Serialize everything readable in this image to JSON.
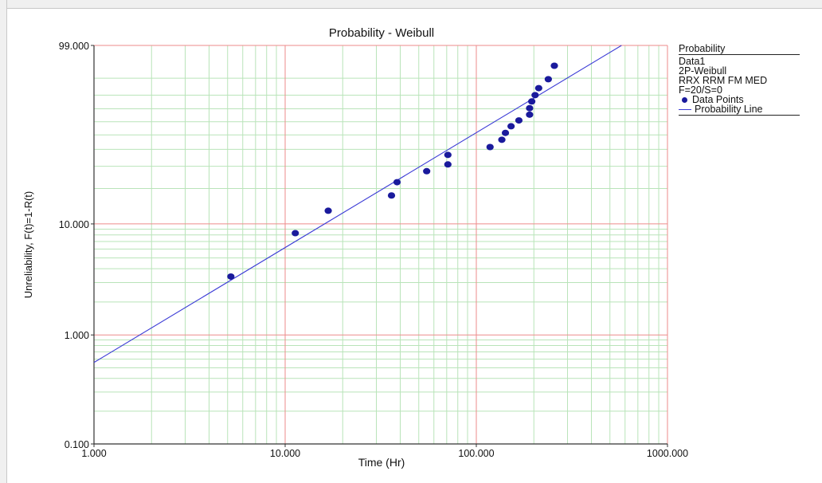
{
  "chart_data": {
    "type": "scatter",
    "title": "Probability - Weibull",
    "xlabel": "Time (Hr)",
    "ylabel": "Unreliability, F(t)=1-R(t)",
    "x_scale": "log",
    "y_scale": "weibull",
    "xlim": [
      1,
      1000
    ],
    "ylim": [
      0.1,
      99
    ],
    "x_ticks": [
      1,
      10,
      100,
      1000
    ],
    "x_tick_labels": [
      "1.000",
      "10.000",
      "100.000",
      "1000.000"
    ],
    "y_ticks": [
      0.1,
      1,
      10,
      99
    ],
    "y_tick_labels": [
      "0.100",
      "1.000",
      "10.000",
      "99.000"
    ],
    "grid": true,
    "legend_position": "right",
    "series": [
      {
        "name": "Data Points",
        "kind": "points",
        "color": "#1a1a9c",
        "points": [
          {
            "x": 5.2,
            "y": 3.4
          },
          {
            "x": 11.3,
            "y": 8.3
          },
          {
            "x": 16.8,
            "y": 13.0
          },
          {
            "x": 36.0,
            "y": 17.5
          },
          {
            "x": 38.5,
            "y": 22.5
          },
          {
            "x": 55.0,
            "y": 27.5
          },
          {
            "x": 71.0,
            "y": 31.0
          },
          {
            "x": 71.0,
            "y": 36.5
          },
          {
            "x": 118.0,
            "y": 41.5
          },
          {
            "x": 136.0,
            "y": 46.5
          },
          {
            "x": 142.0,
            "y": 51.5
          },
          {
            "x": 152.0,
            "y": 56.5
          },
          {
            "x": 167.0,
            "y": 61.0
          },
          {
            "x": 190.0,
            "y": 65.5
          },
          {
            "x": 190.0,
            "y": 70.5
          },
          {
            "x": 195.0,
            "y": 75.5
          },
          {
            "x": 203.0,
            "y": 80.0
          },
          {
            "x": 212.0,
            "y": 84.5
          },
          {
            "x": 238.0,
            "y": 89.5
          },
          {
            "x": 256.0,
            "y": 95.0
          }
        ]
      },
      {
        "name": "Probability Line",
        "kind": "line",
        "color": "#3b3bd6",
        "points": [
          {
            "x": 1.0,
            "y": 0.56
          },
          {
            "x": 575.0,
            "y": 99.0
          }
        ]
      }
    ]
  },
  "legend": {
    "title": "Probability",
    "lines": [
      "Data1",
      "2P-Weibull",
      "RRX RRM FM MED",
      "F=20/S=0"
    ],
    "data_points_label": "Data Points",
    "probability_line_label": "Probability Line"
  },
  "colors": {
    "grid_major": "#ee8b8b",
    "grid_minor": "#b9e4b9",
    "axis": "#333333",
    "points": "#1a1a9c",
    "line": "#3b3bd6"
  }
}
